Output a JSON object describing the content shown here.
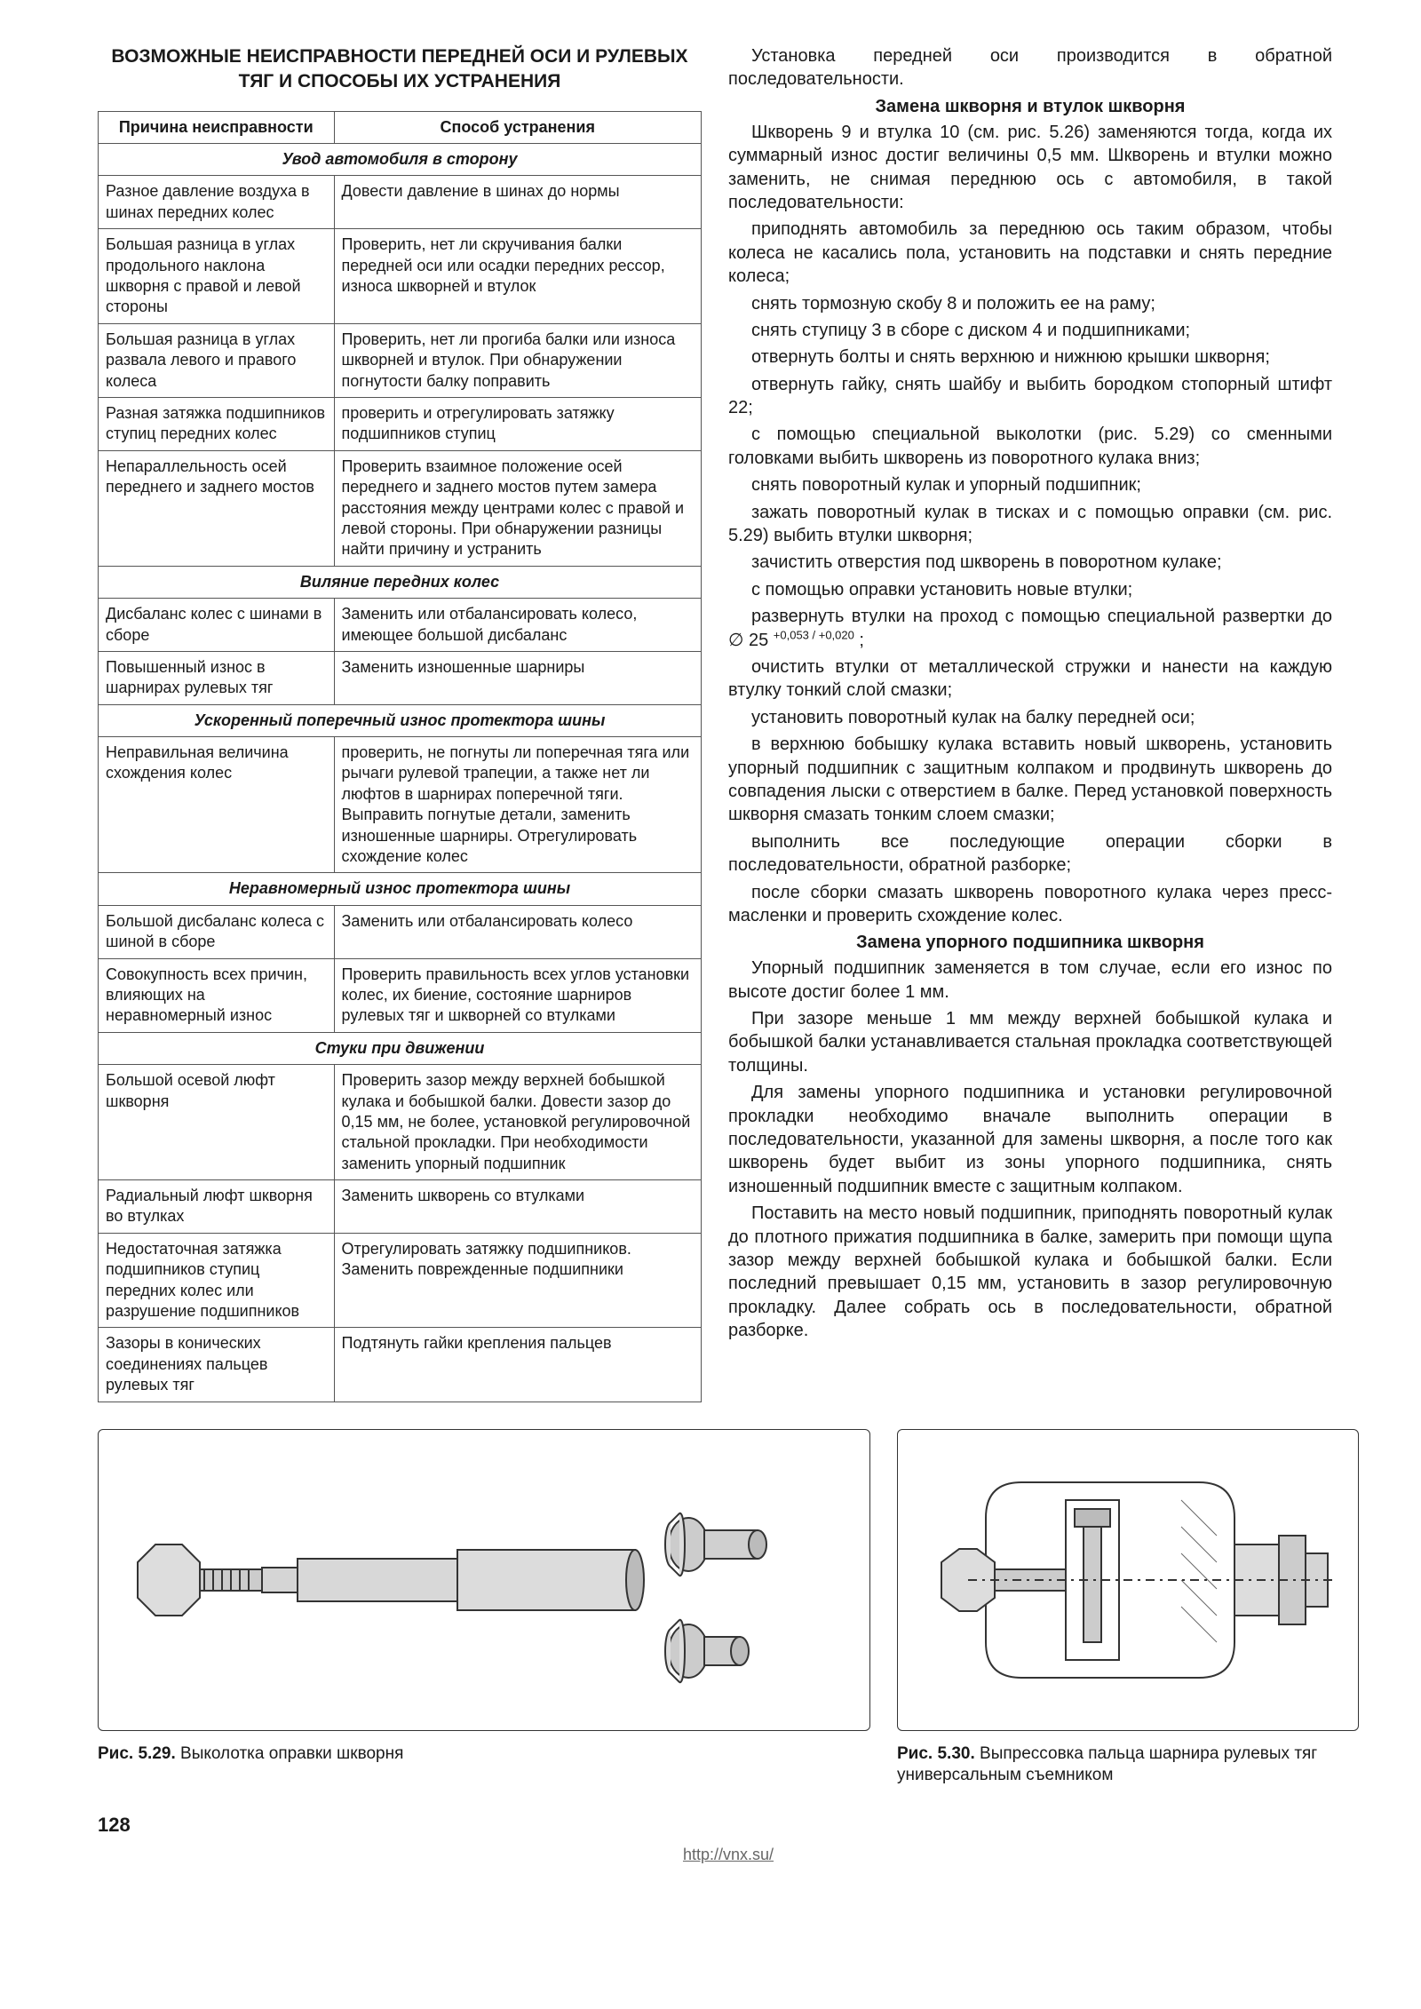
{
  "title": "ВОЗМОЖНЫЕ НЕИСПРАВНОСТИ ПЕРЕДНЕЙ ОСИ И РУЛЕВЫХ ТЯГ И СПОСОБЫ ИХ УСТРАНЕНИЯ",
  "table": {
    "headers": [
      "Причина неисправности",
      "Способ устранения"
    ],
    "sections": [
      {
        "head": "Увод автомобиля в сторону",
        "rows": [
          [
            "Разное давление воздуха в шинах передних колес",
            "Довести давление в шинах до нормы"
          ],
          [
            "Большая разница в углах продольного наклона шкворня с правой и левой стороны",
            "Проверить, нет ли скручивания балки передней оси или осадки передних рессор, износа шкворней и втулок"
          ],
          [
            "Большая разница в углах развала левого и правого колеса",
            "Проверить, нет ли прогиба балки или износа шкворней и втулок. При обнаружении погнутости балку поправить"
          ],
          [
            "Разная затяжка подшипников ступиц передних колес",
            "проверить и отрегулировать затяжку подшипников ступиц"
          ],
          [
            "Непараллельность осей переднего и заднего мостов",
            "Проверить взаимное положение осей переднего и заднего мостов путем замера расстояния между центрами колес с правой и левой стороны. При обнаружении разницы найти причину и устранить"
          ]
        ]
      },
      {
        "head": "Виляние передних колес",
        "rows": [
          [
            "Дисбаланс колес с шинами в сборе",
            "Заменить или отбалансировать колесо, имеющее большой дисбаланс"
          ],
          [
            "Повышенный износ в шарнирах рулевых тяг",
            "Заменить изношенные шарниры"
          ]
        ]
      },
      {
        "head": "Ускоренный поперечный износ протектора шины",
        "rows": [
          [
            "Неправильная величина схождения колес",
            "проверить, не погнуты ли поперечная тяга или рычаги рулевой трапеции, а также нет ли люфтов в шарнирах поперечной тяги. Выправить погнутые детали, заменить изношенные шарниры. Отрегулировать схождение колес"
          ]
        ]
      },
      {
        "head": "Неравномерный износ протектора шины",
        "rows": [
          [
            "Большой дисбаланс колеса с шиной в сборе",
            "Заменить или отбалансировать колесо"
          ],
          [
            "Совокупность всех причин, влияющих на неравномерный износ",
            "Проверить правильность всех углов установки колес, их биение, состояние шарниров рулевых тяг и шкворней со втулками"
          ]
        ]
      },
      {
        "head": "Стуки при движении",
        "rows": [
          [
            "Большой осевой люфт шкворня",
            "Проверить зазор между верхней бобышкой кулака и бобышкой балки. Довести зазор до 0,15 мм, не более, установкой регулировочной стальной прокладки. При необходимости заменить упорный подшипник"
          ],
          [
            "Радиальный люфт шкворня во втулках",
            "Заменить шкворень со втулками"
          ],
          [
            "Недостаточная затяжка подшипников ступиц передних колес или разрушение подшипников",
            "Отрегулировать затяжку подшипников. Заменить поврежденные подшипники"
          ],
          [
            "Зазоры в конических соединениях пальцев рулевых тяг",
            "Подтянуть гайки крепления пальцев"
          ]
        ]
      }
    ]
  },
  "right_heading_1": "Замена шкворня и втулок шкворня",
  "right_heading_2": "Замена упорного подшипника шкворня",
  "paragraph_intro": "Установка передней оси производится в обратной последовательности.",
  "paragraphs_a": [
    "Шкворень 9 и втулка 10 (см. рис. 5.26) заменяются тогда, когда их суммарный износ достиг величины 0,5 мм. Шкворень и втулки можно заменить, не снимая переднюю ось с автомобиля, в такой последовательности:",
    "приподнять автомобиль за переднюю ось таким образом, чтобы колеса не касались пола, установить на подставки и снять передние колеса;",
    "снять тормозную скобу 8 и положить ее на раму;",
    "снять ступицу 3 в сборе с диском 4 и подшипниками;",
    "отвернуть болты и снять верхнюю и нижнюю крышки шкворня;",
    "отвернуть гайку, снять шайбу и выбить бородком стопорный штифт 22;",
    "с помощью специальной выколотки (рис. 5.29) со сменными головками выбить шкворень из поворотного кулака вниз;",
    "снять поворотный кулак и упорный подшипник;",
    "зажать поворотный кулак в тисках и с помощью оправки (см. рис. 5.29) выбить втулки шкворня;",
    "зачистить отверстия под шкворень в поворотном кулаке;",
    "с помощью оправки установить новые втулки;"
  ],
  "para_special": "развернуть втулки на проход с помощью специальной развертки до ∅ 25 ",
  "para_special_sup": "+0,053 / +0,020",
  "para_special_tail": " ;",
  "paragraphs_b": [
    "очистить втулки от металлической стружки и нанести на каждую втулку тонкий слой смазки;",
    "установить поворотный кулак на балку передней оси;",
    "в верхнюю бобышку кулака вставить новый шкворень, установить упорный подшипник с защитным колпаком и продвинуть шкворень до совпадения лыски с отверстием в балке. Перед установкой поверхность шкворня смазать тонким слоем смазки;",
    "выполнить все последующие операции сборки в последовательности, обратной разборке;",
    "после сборки смазать шкворень поворотного кулака через пресс-масленки и проверить схождение колес."
  ],
  "paragraphs_c": [
    "Упорный подшипник заменяется в том случае, если его износ по высоте достиг более 1 мм.",
    "При зазоре меньше 1 мм между верхней бобышкой кулака и бобышкой балки устанавливается стальная прокладка соответствующей толщины.",
    "Для замены упорного подшипника и установки регулировочной прокладки необходимо вначале выполнить операции в последовательности, указанной для замены шкворня, а после того как шкворень будет выбит из зоны упорного подшипника, снять изношенный подшипник вместе с защитным колпаком.",
    "Поставить на место новый подшипник, приподнять поворотный кулак до плотного прижатия подшипника в балке, замерить при помощи щупа зазор между верхней бобышкой кулака и бобышкой балки. Если последний превышает 0,15 мм, установить в зазор регулировочную прокладку. Далее собрать ось в последовательности, обратной разборке."
  ],
  "fig_left": {
    "num": "Рис. 5.29.",
    "caption": "Выколотка оправки шкворня"
  },
  "fig_right": {
    "num": "Рис. 5.30.",
    "caption": "Выпрессовка пальца шарнира рулевых тяг универсальным съемником"
  },
  "page_number": "128",
  "footer_link": "http://vnx.su/"
}
